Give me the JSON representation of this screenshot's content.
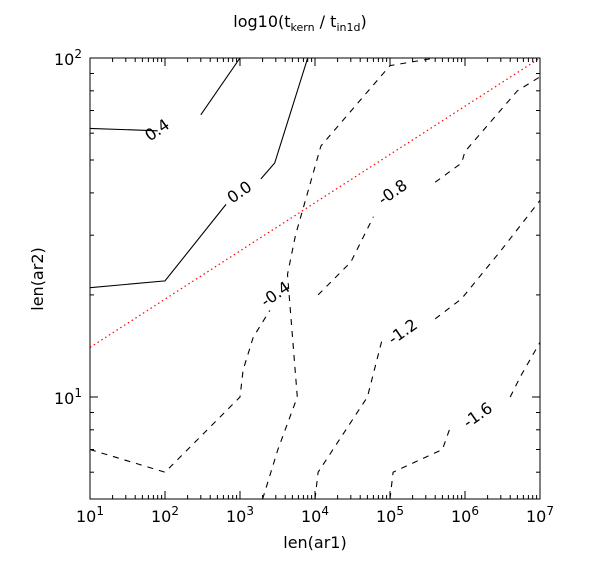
{
  "chart_data": {
    "type": "contour",
    "title": "log10(t_kern / t_in1d)",
    "xlabel": "len(ar1)",
    "ylabel": "len(ar2)",
    "xscale": "log",
    "yscale": "log",
    "xlim": [
      10,
      10000000
    ],
    "ylim": [
      5,
      100
    ],
    "grid": false,
    "x_ticks": [
      {
        "base": "10",
        "exp": "1",
        "value": 10
      },
      {
        "base": "10",
        "exp": "2",
        "value": 100
      },
      {
        "base": "10",
        "exp": "3",
        "value": 1000
      },
      {
        "base": "10",
        "exp": "4",
        "value": 10000
      },
      {
        "base": "10",
        "exp": "5",
        "value": 100000
      },
      {
        "base": "10",
        "exp": "6",
        "value": 1000000
      },
      {
        "base": "10",
        "exp": "7",
        "value": 10000000
      }
    ],
    "y_ticks": [
      {
        "base": "10",
        "exp": "1",
        "value": 10
      },
      {
        "base": "10",
        "exp": "2",
        "value": 100
      }
    ],
    "reference_line": {
      "style": "dotted",
      "color": "#ff0000",
      "points": [
        [
          10,
          14
        ],
        [
          10000000,
          100
        ]
      ]
    },
    "contours": [
      {
        "level": 0.4,
        "label": "0.4",
        "style": "solid",
        "segments": [
          [
            [
              10,
              62
            ],
            [
              80,
              61
            ]
          ],
          [
            [
              300,
              68
            ],
            [
              1000,
              100
            ]
          ]
        ],
        "label_position": [
          80,
          61
        ]
      },
      {
        "level": 0.0,
        "label": "0.0",
        "style": "solid",
        "segments": [
          [
            [
              10,
              21
            ],
            [
              100,
              22
            ],
            [
              650,
              37
            ]
          ],
          [
            [
              1900,
              44
            ],
            [
              2900,
              49
            ],
            [
              8000,
              100
            ]
          ]
        ],
        "label_position": [
          1000,
          40
        ]
      },
      {
        "level": -0.4,
        "label": "-0.4",
        "style": "dashed",
        "segments": [
          [
            [
              10,
              7
            ],
            [
              100,
              6
            ],
            [
              1000,
              10
            ],
            [
              1100,
              12
            ],
            [
              1500,
              15
            ],
            [
              2500,
              18
            ]
          ],
          [
            [
              2000,
              5
            ],
            [
              3200,
              7
            ],
            [
              5800,
              10
            ],
            [
              4300,
              23
            ],
            [
              5500,
              30
            ],
            [
              12000,
              55
            ],
            [
              100000,
              95
            ],
            [
              400000,
              100
            ]
          ]
        ],
        "label_position": [
          3000,
          20
        ]
      },
      {
        "level": -0.8,
        "label": "-0.8",
        "style": "dashed",
        "segments": [
          [
            [
              10000,
              5
            ],
            [
              11000,
              6
            ],
            [
              50000,
              10
            ],
            [
              80000,
              15
            ]
          ],
          [
            [
              11000,
              20
            ],
            [
              30000,
              25
            ],
            [
              60000,
              34
            ]
          ],
          [
            [
              400000,
              43
            ],
            [
              900000,
              49
            ],
            [
              1000000,
              53
            ],
            [
              5000000,
              80
            ],
            [
              10000000,
              88
            ]
          ]
        ],
        "label_position": [
          110000,
          40
        ]
      },
      {
        "level": -1.2,
        "label": "-1.2",
        "style": "dashed",
        "segments": [
          [
            [
              100000,
              5
            ],
            [
              110000,
              6
            ],
            [
              500000,
              7
            ],
            [
              620000,
              8
            ]
          ],
          [
            [
              400000,
              17
            ],
            [
              900000,
              19.5
            ],
            [
              3000000,
              27
            ],
            [
              10000000,
              38
            ]
          ]
        ],
        "label_position": [
          150000,
          15.5
        ]
      },
      {
        "level": -1.6,
        "label": "-1.6",
        "style": "dashed",
        "segments": [
          [
            [
              4000000,
              10
            ],
            [
              5500000,
              11.5
            ],
            [
              10000000,
              14.5
            ]
          ]
        ],
        "label_position": [
          1500000,
          8.8
        ]
      }
    ]
  }
}
